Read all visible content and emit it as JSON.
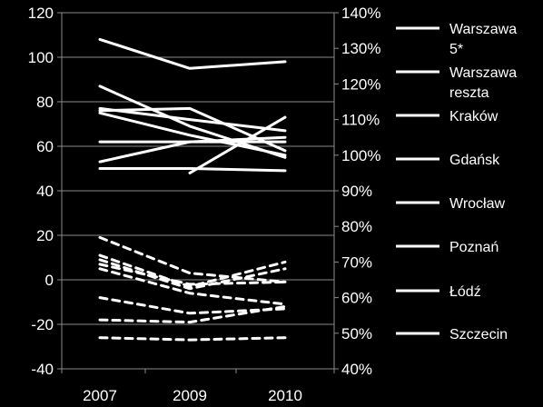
{
  "chart_data": {
    "type": "line",
    "x": [
      "2007",
      "2009",
      "2010"
    ],
    "y_left": {
      "min": -40,
      "max": 120,
      "ticks": [
        -40,
        -20,
        0,
        20,
        40,
        60,
        80,
        100,
        120
      ]
    },
    "y_right": {
      "min": 0.4,
      "max": 1.4,
      "ticks": [
        0.4,
        0.5,
        0.6,
        0.7,
        0.8,
        0.9,
        1.0,
        1.1,
        1.2,
        1.3,
        1.4
      ],
      "tick_labels": [
        "40%",
        "50%",
        "60%",
        "70%",
        "80%",
        "90%",
        "100%",
        "110%",
        "120%",
        "130%",
        "140%"
      ]
    },
    "gridlines": true,
    "legend_position": "right",
    "legend": [
      [
        "Warszawa",
        "5*"
      ],
      [
        "Warszawa",
        "reszta"
      ],
      [
        "Kraków"
      ],
      [
        "Gdańsk"
      ],
      [
        "Wrocław"
      ],
      [
        "Poznań"
      ],
      [
        "Łódź"
      ],
      [
        "Szczecin"
      ]
    ],
    "solid_series_left_axis": [
      {
        "values": [
          108,
          95,
          98
        ]
      },
      {
        "values": [
          87,
          69,
          55
        ]
      },
      {
        "values": [
          77,
          72,
          67
        ]
      },
      {
        "values": [
          76,
          77,
          58
        ]
      },
      {
        "values": [
          75,
          65,
          56
        ]
      },
      {
        "values": [
          62,
          62,
          62
        ]
      },
      {
        "values": [
          53,
          62,
          64
        ]
      },
      {
        "values": [
          50,
          50,
          49
        ]
      },
      {
        "x": [
          "2009",
          "2010"
        ],
        "values": [
          48,
          73
        ]
      }
    ],
    "dashed_series_left_axis": [
      {
        "values": [
          19,
          3,
          -1
        ]
      },
      {
        "values": [
          11,
          -3,
          8
        ]
      },
      {
        "values": [
          9,
          -4,
          5
        ]
      },
      {
        "values": [
          7,
          -2,
          -1
        ]
      },
      {
        "values": [
          5,
          -6,
          -11
        ]
      },
      {
        "values": [
          -8,
          -15,
          -13
        ]
      },
      {
        "values": [
          -18,
          -19,
          -12
        ]
      },
      {
        "values": [
          -26,
          -27,
          -26
        ]
      }
    ]
  }
}
